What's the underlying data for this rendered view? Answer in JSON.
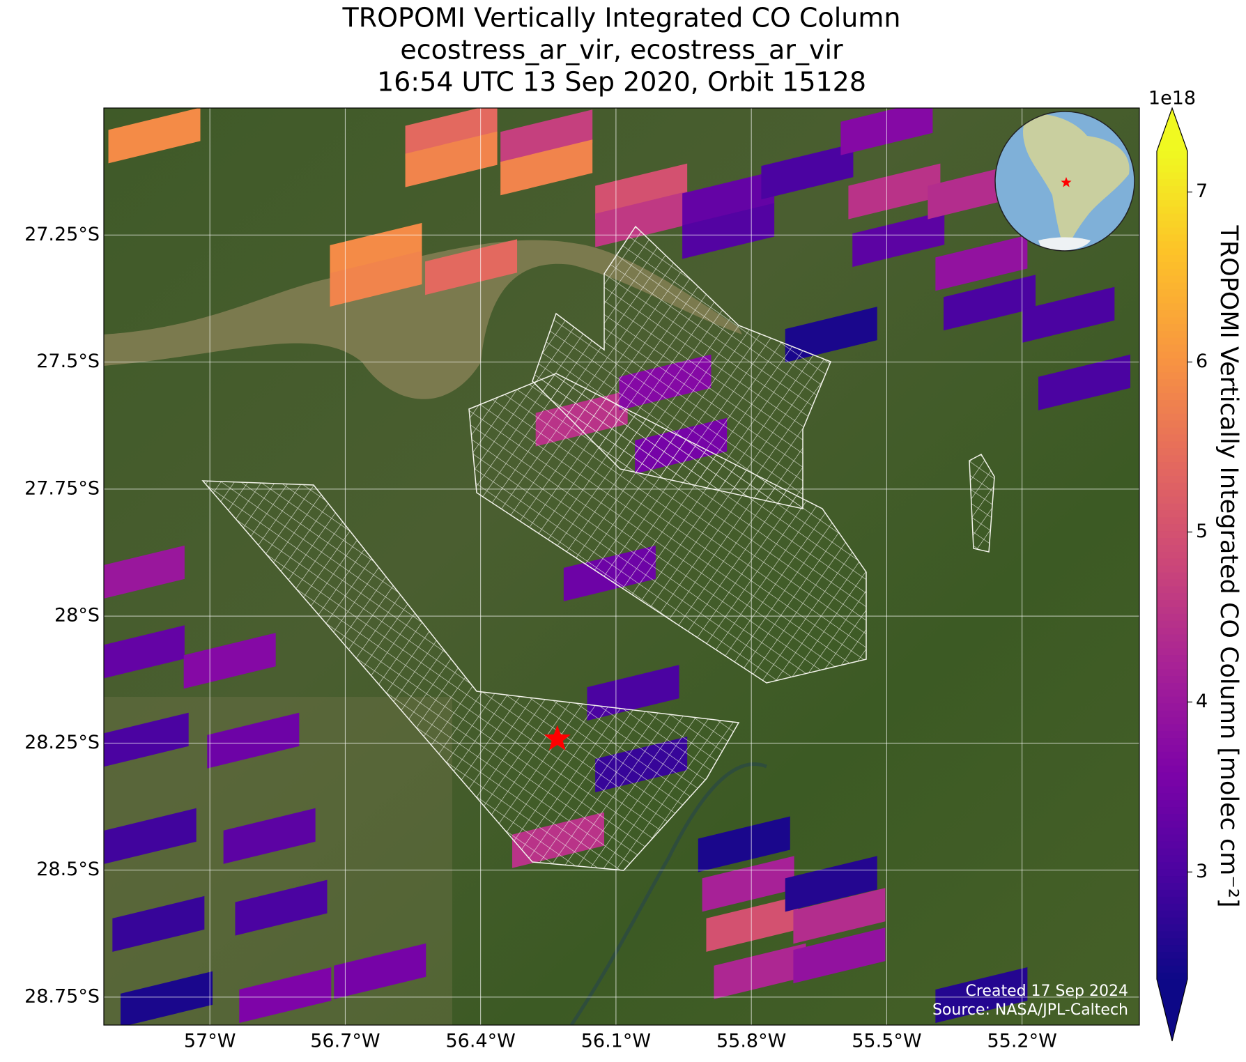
{
  "chart_data": {
    "type": "map",
    "title_lines": [
      "TROPOMI Vertically Integrated CO Column",
      "ecostress_ar_vir, ecostress_ar_vir",
      "16:54 UTC 13 Sep 2020, Orbit 15128"
    ],
    "xlim": [
      -57.235,
      -54.94
    ],
    "ylim": [
      -28.805,
      -27.0
    ],
    "xticks": [
      {
        "value": -57,
        "label": "57°W"
      },
      {
        "value": -56.7,
        "label": "56.7°W"
      },
      {
        "value": -56.4,
        "label": "56.4°W"
      },
      {
        "value": -56.1,
        "label": "56.1°W"
      },
      {
        "value": -55.8,
        "label": "55.8°W"
      },
      {
        "value": -55.5,
        "label": "55.5°W"
      },
      {
        "value": -55.2,
        "label": "55.2°W"
      }
    ],
    "yticks": [
      {
        "value": -27.25,
        "label": "27.25°S"
      },
      {
        "value": -27.5,
        "label": "27.5°S"
      },
      {
        "value": -27.75,
        "label": "27.75°S"
      },
      {
        "value": -28,
        "label": "28°S"
      },
      {
        "value": -28.25,
        "label": "28.25°S"
      },
      {
        "value": -28.5,
        "label": "28.5°S"
      },
      {
        "value": -28.75,
        "label": "28.75°S"
      }
    ],
    "grid": true,
    "cells": [
      {
        "lon": -57.123,
        "lat": -27.054,
        "value": 5.9
      },
      {
        "lon": -56.465,
        "lat": -27.046,
        "value": 5.4
      },
      {
        "lon": -56.465,
        "lat": -27.101,
        "value": 5.8
      },
      {
        "lon": -56.254,
        "lat": -27.058,
        "value": 4.7
      },
      {
        "lon": -56.254,
        "lat": -27.117,
        "value": 5.8
      },
      {
        "lon": -56.632,
        "lat": -27.281,
        "value": 5.9
      },
      {
        "lon": -56.632,
        "lat": -27.336,
        "value": 5.8
      },
      {
        "lon": -56.421,
        "lat": -27.313,
        "value": 5.4
      },
      {
        "lon": -56.044,
        "lat": -27.164,
        "value": 5.0
      },
      {
        "lon": -56.044,
        "lat": -27.219,
        "value": 4.6
      },
      {
        "lon": -55.851,
        "lat": -27.179,
        "value": 3.3
      },
      {
        "lon": -55.851,
        "lat": -27.242,
        "value": 3.1
      },
      {
        "lon": -55.676,
        "lat": -27.125,
        "value": 3.0
      },
      {
        "lon": -55.5,
        "lat": -27.038,
        "value": 3.7
      },
      {
        "lon": -55.483,
        "lat": -27.164,
        "value": 4.5
      },
      {
        "lon": -55.474,
        "lat": -27.258,
        "value": 3.2
      },
      {
        "lon": -55.307,
        "lat": -27.164,
        "value": 4.4
      },
      {
        "lon": -55.29,
        "lat": -27.305,
        "value": 3.9
      },
      {
        "lon": -55.272,
        "lat": -27.383,
        "value": 3.0
      },
      {
        "lon": -55.623,
        "lat": -27.446,
        "value": 2.5
      },
      {
        "lon": -55.097,
        "lat": -27.407,
        "value": 3.0
      },
      {
        "lon": -55.062,
        "lat": -27.54,
        "value": 3.0
      },
      {
        "lon": -56.176,
        "lat": -27.611,
        "value": 4.5
      },
      {
        "lon": -55.991,
        "lat": -27.54,
        "value": 3.7
      },
      {
        "lon": -55.956,
        "lat": -27.665,
        "value": 3.5
      },
      {
        "lon": -56.114,
        "lat": -27.916,
        "value": 3.4
      },
      {
        "lon": -56.062,
        "lat": -28.151,
        "value": 3.0
      },
      {
        "lon": -56.044,
        "lat": -28.292,
        "value": 2.8
      },
      {
        "lon": -56.228,
        "lat": -28.441,
        "value": 4.5
      },
      {
        "lon": -57.158,
        "lat": -27.916,
        "value": 4.0
      },
      {
        "lon": -57.158,
        "lat": -28.073,
        "value": 3.3
      },
      {
        "lon": -57.149,
        "lat": -28.245,
        "value": 3.0
      },
      {
        "lon": -57.132,
        "lat": -28.433,
        "value": 2.9
      },
      {
        "lon": -57.114,
        "lat": -28.606,
        "value": 2.8
      },
      {
        "lon": -56.956,
        "lat": -28.088,
        "value": 3.7
      },
      {
        "lon": -56.904,
        "lat": -28.245,
        "value": 3.4
      },
      {
        "lon": -56.868,
        "lat": -28.433,
        "value": 3.2
      },
      {
        "lon": -56.842,
        "lat": -28.574,
        "value": 3.0
      },
      {
        "lon": -56.833,
        "lat": -28.746,
        "value": 3.6
      },
      {
        "lon": -56.623,
        "lat": -28.699,
        "value": 3.5
      },
      {
        "lon": -57.096,
        "lat": -28.754,
        "value": 2.5
      },
      {
        "lon": -55.816,
        "lat": -28.449,
        "value": 2.5
      },
      {
        "lon": -55.807,
        "lat": -28.527,
        "value": 4.2
      },
      {
        "lon": -55.798,
        "lat": -28.606,
        "value": 5.0
      },
      {
        "lon": -55.781,
        "lat": -28.699,
        "value": 4.3
      },
      {
        "lon": -55.623,
        "lat": -28.527,
        "value": 2.6
      },
      {
        "lon": -55.605,
        "lat": -28.59,
        "value": 4.4
      },
      {
        "lon": -55.605,
        "lat": -28.668,
        "value": 3.9
      },
      {
        "lon": -55.29,
        "lat": -28.746,
        "value": 2.6
      }
    ],
    "site": {
      "lon": -56.23,
      "lat": -28.242,
      "color": "#ff0000"
    },
    "colorbar": {
      "label": "TROPOMI Vertically Integrated CO Column [molec cm⁻²]",
      "exponent": "1e18",
      "clim": [
        2.37,
        7.24
      ],
      "ticks": [
        3,
        4,
        5,
        6,
        7
      ],
      "colormap": "plasma"
    },
    "credits": [
      "Created 17 Sep 2024",
      "Source: NASA/JPL-Caltech"
    ]
  }
}
